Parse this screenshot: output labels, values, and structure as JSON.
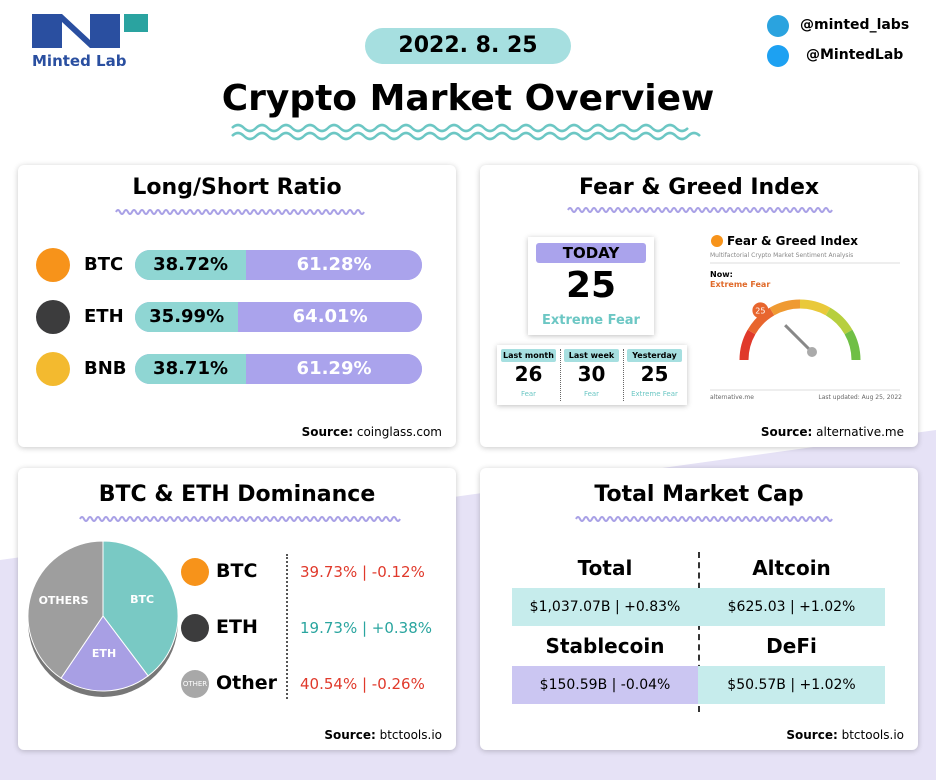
{
  "header": {
    "logo": "Minted Lab",
    "date": "2022. 8. 25",
    "title": "Crypto Market Overview",
    "telegram": "@minted_labs",
    "twitter": "@MintedLab"
  },
  "long_short": {
    "title": "Long/Short Ratio",
    "long_color": "#8fd6d3",
    "short_color": "#aaa3ec",
    "rows": [
      {
        "coin": "BTC",
        "icon_color": "#f7931a",
        "long": 38.72,
        "long_label": "38.72%",
        "short": 61.28,
        "short_label": "61.28%"
      },
      {
        "coin": "ETH",
        "icon_color": "#3c3c3d",
        "long": 35.99,
        "long_label": "35.99%",
        "short": 64.01,
        "short_label": "64.01%"
      },
      {
        "coin": "BNB",
        "icon_color": "#f3ba2f",
        "long": 38.71,
        "long_label": "38.71%",
        "short": 61.29,
        "short_label": "61.29%"
      }
    ],
    "source_label": "Source:",
    "source": "coinglass.com"
  },
  "fear_greed": {
    "title": "Fear & Greed Index",
    "today": {
      "label": "TODAY",
      "value": 25,
      "class": "Extreme Fear"
    },
    "history": [
      {
        "label": "Last month",
        "value": 26,
        "class": "Fear"
      },
      {
        "label": "Last week",
        "value": 30,
        "class": "Fear"
      },
      {
        "label": "Yesterday",
        "value": 25,
        "class": "Extreme Fear"
      }
    ],
    "widget": {
      "title": "Fear & Greed Index",
      "subtitle": "Multifactorial Crypto Market Sentiment Analysis",
      "now_label": "Now:",
      "now_class": "Extreme Fear",
      "value": 25,
      "range": [
        0,
        100
      ],
      "footer": "alternative.me",
      "updated": "Last updated: Aug 25, 2022"
    },
    "source_label": "Source:",
    "source": "alternative.me"
  },
  "dominance": {
    "title": "BTC & ETH Dominance",
    "pie": [
      {
        "name": "BTC",
        "value": 39.73,
        "color": "#79c9c4"
      },
      {
        "name": "ETH",
        "value": 19.73,
        "color": "#a89fe4"
      },
      {
        "name": "OTHERS",
        "value": 40.54,
        "color": "#9e9e9e"
      }
    ],
    "rows": [
      {
        "name": "BTC",
        "icon_color": "#f7931a",
        "text": "39.73% | -0.12%",
        "color": "#e0392b"
      },
      {
        "name": "ETH",
        "icon_color": "#3c3c3d",
        "text": "19.73% | +0.38%",
        "color": "#2aa59f"
      },
      {
        "name": "Other",
        "icon": "OTHER",
        "icon_color": "#a8a8a8",
        "text": "40.54% | -0.26%",
        "color": "#e0392b"
      }
    ],
    "source_label": "Source:",
    "source": "btctools.io"
  },
  "market_cap": {
    "title": "Total Market Cap",
    "cells": [
      {
        "label": "Total",
        "value": "$1,037.07B | +0.83%",
        "bg": "#c6ecec"
      },
      {
        "label": "Altcoin",
        "value": "$625.03 | +1.02%",
        "bg": "#c6ecec"
      },
      {
        "label": "Stablecoin",
        "value": "$150.59B | -0.04%",
        "bg": "#cbc6f2"
      },
      {
        "label": "DeFi",
        "value": "$50.57B | +1.02%",
        "bg": "#c6ecec"
      }
    ],
    "source_label": "Source:",
    "source": "btctools.io"
  }
}
